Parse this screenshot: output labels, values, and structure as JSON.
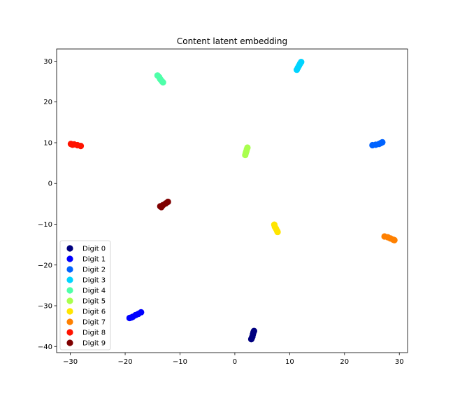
{
  "chart_data": {
    "type": "scatter",
    "title": "Content latent embedding",
    "xlabel": "",
    "ylabel": "",
    "xlim": [
      -32.5,
      31.5
    ],
    "ylim": [
      -41.5,
      33.0
    ],
    "xticks": [
      -30,
      -20,
      -10,
      0,
      10,
      20,
      30
    ],
    "yticks": [
      -40,
      -30,
      -20,
      -10,
      0,
      10,
      20,
      30
    ],
    "grid": false,
    "legend_position": "lower-left",
    "series": [
      {
        "name": "Digit 0",
        "color": "#00007f",
        "points": [
          [
            3.0,
            -38.2
          ],
          [
            3.2,
            -37.6
          ],
          [
            3.3,
            -37.0
          ],
          [
            3.4,
            -36.5
          ],
          [
            3.5,
            -36.2
          ],
          [
            3.1,
            -37.9
          ]
        ]
      },
      {
        "name": "Digit 1",
        "color": "#0000ff",
        "points": [
          [
            -19.2,
            -33.0
          ],
          [
            -18.6,
            -32.7
          ],
          [
            -18.1,
            -32.3
          ],
          [
            -17.6,
            -32.0
          ],
          [
            -17.1,
            -31.6
          ],
          [
            -18.9,
            -32.9
          ]
        ]
      },
      {
        "name": "Digit 2",
        "color": "#0063ff",
        "points": [
          [
            25.1,
            9.4
          ],
          [
            25.7,
            9.5
          ],
          [
            26.3,
            9.7
          ],
          [
            26.9,
            10.1
          ],
          [
            26.6,
            9.9
          ]
        ]
      },
      {
        "name": "Digit 3",
        "color": "#00d4ff",
        "points": [
          [
            11.3,
            27.9
          ],
          [
            11.5,
            28.4
          ],
          [
            11.7,
            28.9
          ],
          [
            11.9,
            29.4
          ],
          [
            12.1,
            29.8
          ]
        ]
      },
      {
        "name": "Digit 4",
        "color": "#4effa9",
        "points": [
          [
            -14.1,
            26.5
          ],
          [
            -13.8,
            26.1
          ],
          [
            -13.6,
            25.6
          ],
          [
            -13.3,
            25.1
          ],
          [
            -13.1,
            24.8
          ]
        ]
      },
      {
        "name": "Digit 5",
        "color": "#a9ff4e",
        "points": [
          [
            1.9,
            7.0
          ],
          [
            2.0,
            7.5
          ],
          [
            2.1,
            7.9
          ],
          [
            2.2,
            8.4
          ],
          [
            2.3,
            8.8
          ]
        ]
      },
      {
        "name": "Digit 6",
        "color": "#ffe500",
        "points": [
          [
            7.2,
            -10.1
          ],
          [
            7.3,
            -10.6
          ],
          [
            7.5,
            -11.1
          ],
          [
            7.7,
            -11.6
          ],
          [
            7.8,
            -11.9
          ]
        ]
      },
      {
        "name": "Digit 7",
        "color": "#ff8000",
        "points": [
          [
            27.3,
            -13.0
          ],
          [
            27.9,
            -13.2
          ],
          [
            28.4,
            -13.5
          ],
          [
            28.9,
            -13.8
          ],
          [
            29.1,
            -13.9
          ]
        ]
      },
      {
        "name": "Digit 8",
        "color": "#ff1300",
        "points": [
          [
            -29.9,
            9.7
          ],
          [
            -29.3,
            9.6
          ],
          [
            -28.7,
            9.4
          ],
          [
            -28.1,
            9.2
          ],
          [
            -29.6,
            9.5
          ]
        ]
      },
      {
        "name": "Digit 9",
        "color": "#7f0000",
        "points": [
          [
            -13.6,
            -5.6
          ],
          [
            -13.1,
            -5.3
          ],
          [
            -12.6,
            -4.9
          ],
          [
            -12.2,
            -4.5
          ],
          [
            -13.4,
            -5.8
          ]
        ]
      }
    ]
  }
}
